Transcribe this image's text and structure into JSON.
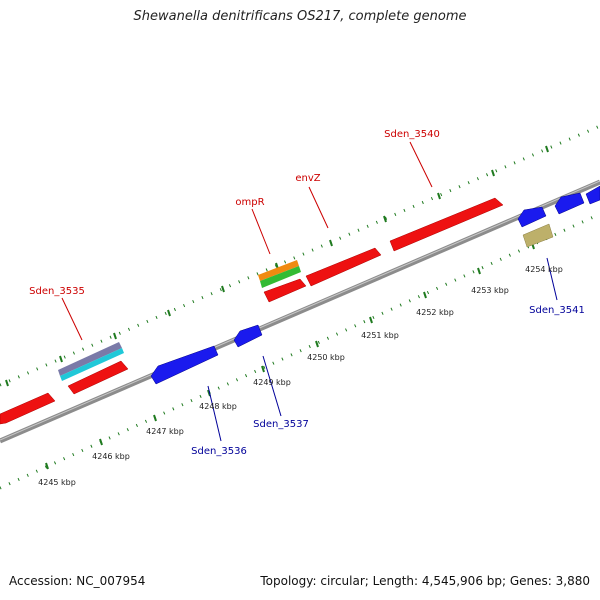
{
  "title": "Shewanella denitrificans OS217, complete genome",
  "footer": {
    "accession": "Accession: NC_007954",
    "topology": "Topology: circular; Length: 4,545,906 bp; Genes: 3,880"
  },
  "colors": {
    "forward_gene": "#ee1111",
    "reverse_gene": "#1a1aee",
    "backbone": "#8c8c8c",
    "tick": "#1f7a1f",
    "top_label": "#cc0000",
    "bottom_label": "#000099"
  },
  "scale_ticks": [
    {
      "label": "4245 kbp",
      "kbp": 4245
    },
    {
      "label": "4246 kbp",
      "kbp": 4246
    },
    {
      "label": "4247 kbp",
      "kbp": 4247
    },
    {
      "label": "4248 kbp",
      "kbp": 4248
    },
    {
      "label": "4249 kbp",
      "kbp": 4249
    },
    {
      "label": "4250 kbp",
      "kbp": 4250
    },
    {
      "label": "4251 kbp",
      "kbp": 4251
    },
    {
      "label": "4252 kbp",
      "kbp": 4252
    },
    {
      "label": "4253 kbp",
      "kbp": 4253
    },
    {
      "label": "4254 kbp",
      "kbp": 4254
    }
  ],
  "gene_labels": {
    "sden_3535": "Sden_3535",
    "ompR": "ompR",
    "envZ": "envZ",
    "sden_3540": "Sden_3540",
    "sden_3536": "Sden_3536",
    "sden_3537": "Sden_3537",
    "sden_3541": "Sden_3541"
  }
}
